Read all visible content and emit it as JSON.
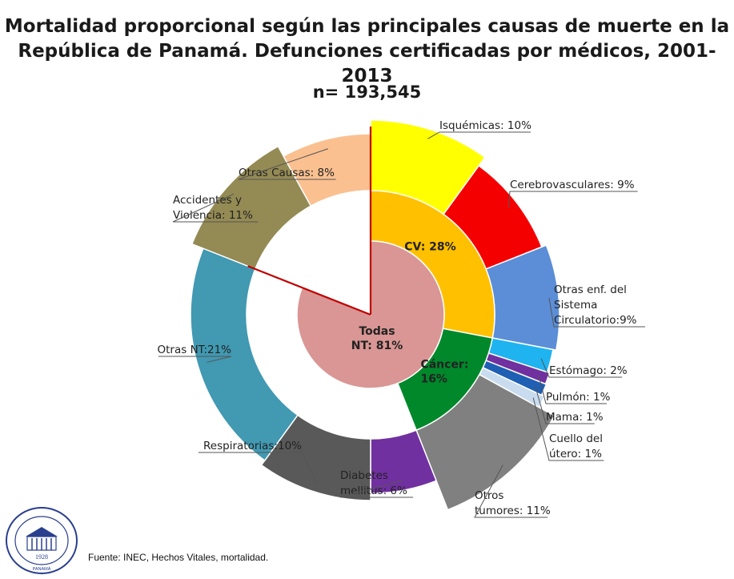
{
  "chart_data": {
    "type": "sunburst",
    "title_line1": "Mortalidad proporcional según las principales causas de muerte en la",
    "title_line2": "República de Panamá. Defunciones certificadas por médicos, 2001- 2013",
    "subtitle": "n= 193,545",
    "center": {
      "line1": "Todas",
      "line2": "NT: 81%",
      "value": 81
    },
    "inner_ring": [
      {
        "label": "CV: 28%",
        "value": 28,
        "color": "#FFC000"
      },
      {
        "label_line1": "Cáncer:",
        "label_line2": "16%",
        "value": 16,
        "color": "#00882B"
      }
    ],
    "outer_ring": [
      {
        "label": "Isquémicas: 10%",
        "value": 10,
        "color": "#FFFF00"
      },
      {
        "label": "Cerebrovasculares: 9%",
        "value": 9,
        "color": "#F50000"
      },
      {
        "label_lines": [
          "Otras enf. del",
          "Sistema",
          "Circulatorio:9%"
        ],
        "value": 9,
        "color": "#5B8ED6"
      },
      {
        "label": "Estómago: 2%",
        "value": 2,
        "color": "#1FB3F0"
      },
      {
        "label": "Pulmón: 1%",
        "value": 1,
        "color": "#7030A0"
      },
      {
        "label": "Mama: 1%",
        "value": 1,
        "color": "#1F5FB4"
      },
      {
        "label_lines": [
          "Cuello del",
          "útero: 1%"
        ],
        "value": 1,
        "color": "#C9DCEF"
      },
      {
        "label_lines": [
          "Otros",
          "tumores: 11%"
        ],
        "value": 11,
        "color": "#808080"
      },
      {
        "label_lines": [
          "Diabetes",
          "mellitus: 6%"
        ],
        "value": 6,
        "color": "#7030A0"
      },
      {
        "label": "Respiratorias:10%",
        "value": 10,
        "color": "#595959"
      },
      {
        "label": "Otras NT:21%",
        "value": 21,
        "color": "#4199B2"
      },
      {
        "label_lines": [
          "Accidentes y",
          "Violencia: 11%"
        ],
        "value": 11,
        "color": "#948A54"
      },
      {
        "label": "Otras Causas: 8%",
        "value": 8,
        "color": "#FAC090"
      }
    ],
    "accent_line_color": "#C00000"
  },
  "source": "Fuente: INEC, Hechos Vitales, mortalidad.",
  "logo": {
    "year": "1928",
    "text": "PANAMÁ"
  }
}
